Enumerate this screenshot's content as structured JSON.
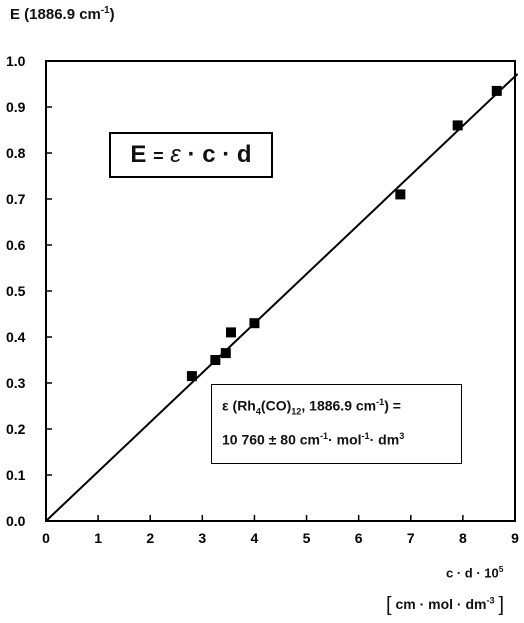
{
  "chart_data": {
    "type": "scatter",
    "title": "",
    "ylabel": {
      "prefix": "E (1886.9 cm",
      "exp": "-1",
      "suffix": ")"
    },
    "xlabel": {
      "line1_prefix": "c · d · 10",
      "line1_exp": "5",
      "line2_a": "cm · mol · dm",
      "line2_exp": "-3"
    },
    "xlim": [
      0,
      9
    ],
    "ylim": [
      0.0,
      1.0
    ],
    "x_ticks": [
      "0",
      "1",
      "2",
      "3",
      "4",
      "5",
      "6",
      "7",
      "8",
      "9"
    ],
    "y_ticks": [
      "0.0",
      "0.1",
      "0.2",
      "0.3",
      "0.4",
      "0.5",
      "0.6",
      "0.7",
      "0.8",
      "0.9",
      "1.0"
    ],
    "grid": false,
    "points": [
      {
        "x": 2.8,
        "y": 0.315
      },
      {
        "x": 3.25,
        "y": 0.35
      },
      {
        "x": 3.45,
        "y": 0.365
      },
      {
        "x": 3.55,
        "y": 0.41
      },
      {
        "x": 4.0,
        "y": 0.43
      },
      {
        "x": 6.8,
        "y": 0.71
      },
      {
        "x": 7.9,
        "y": 0.86
      },
      {
        "x": 8.65,
        "y": 0.935
      }
    ],
    "fit_line": {
      "x": [
        0,
        9.05
      ],
      "y": [
        0.0,
        0.972
      ]
    },
    "formula": {
      "E": "E",
      "eq": "=",
      "eps": "ε",
      "dot1": "·",
      "c": "c",
      "dot2": "·",
      "d": "d"
    },
    "annotation": {
      "line1_a": "ε (Rh",
      "line1_sub1": "4",
      "line1_b": "(CO)",
      "line1_sub2": "12",
      "line1_c": ", 1886.9 cm",
      "line1_exp": "-1",
      "line1_d": ") =",
      "line2_a": "10 760 ± 80 cm",
      "line2_exp1": "-1",
      "line2_b": "· mol",
      "line2_exp2": "-1",
      "line2_c": "· dm",
      "line2_exp3": "3"
    }
  }
}
